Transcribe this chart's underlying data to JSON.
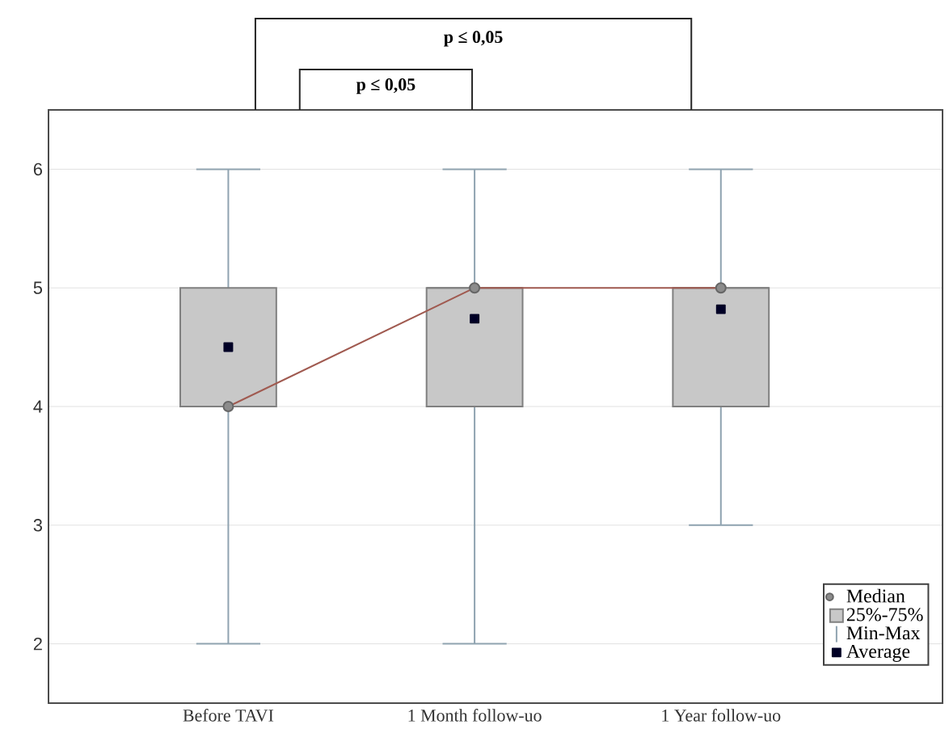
{
  "chart_data": {
    "type": "box",
    "categories": [
      "Before TAVI",
      "1 Month follow-uo",
      "1 Year follow-uo"
    ],
    "series": [
      {
        "type": "box",
        "name": "25%-75%",
        "color": "#c8c8c8",
        "boxes": [
          {
            "low": 2,
            "q1": 4,
            "median": 4,
            "q3": 5,
            "high": 6
          },
          {
            "low": 2,
            "q1": 4,
            "median": 5,
            "q3": 5,
            "high": 6
          },
          {
            "low": 3,
            "q1": 4,
            "median": 5,
            "q3": 5,
            "high": 6
          }
        ]
      },
      {
        "type": "line",
        "name": "Median",
        "color": "#a05a50",
        "values": [
          4,
          5,
          5
        ],
        "marker": "circle"
      },
      {
        "type": "scatter",
        "name": "Average",
        "color": "#000026",
        "x": [
          "Before TAVI",
          "1 Month follow-uo",
          "1 Year follow-uo"
        ],
        "values": [
          4.5,
          4.74,
          4.82
        ],
        "marker": "square"
      }
    ],
    "ylim": [
      1.5,
      6.5
    ],
    "yticks": [
      2,
      3,
      4,
      5,
      6
    ],
    "grid": "y",
    "legend": "bottom right",
    "annotations": [
      "p ≤ 0,05",
      "p ≤ 0,05",
      "Min-Max"
    ]
  }
}
